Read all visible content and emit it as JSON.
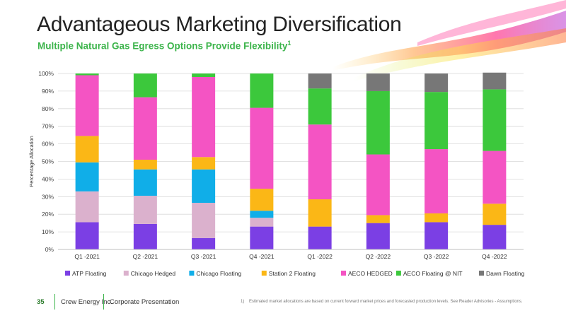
{
  "slide": {
    "title": "Advantageous Marketing Diversification",
    "subtitle": "Multiple Natural Gas Egress Options Provide Flexibility",
    "subtitle_footnote_mark": "1"
  },
  "footer": {
    "page_number": "35",
    "company": "Crew Energy Inc.",
    "presentation": "Corporate Presentation",
    "footnote_number": "1)",
    "footnote_text": "Estimated market allocations are based on current forward market prices and forecasted production levels. See Reader Advisories - Assumptions."
  },
  "chart_data": {
    "type": "bar",
    "stacked": true,
    "ylabel": "Percentage Allocation",
    "ylim": [
      0,
      100
    ],
    "yticks": [
      0,
      10,
      20,
      30,
      40,
      50,
      60,
      70,
      80,
      90,
      100
    ],
    "ytick_suffix": "%",
    "grid": true,
    "legend_position": "bottom",
    "categories": [
      "Q1 -2021",
      "Q2 -2021",
      "Q3 -2021",
      "Q4 -2021",
      "Q1 -2022",
      "Q2 -2022",
      "Q3 -2022",
      "Q4 -2022"
    ],
    "series": [
      {
        "name": "ATP Floating",
        "color": "#7b3fe4",
        "values": [
          15.5,
          14.5,
          6.5,
          13,
          13,
          15,
          15.5,
          14
        ]
      },
      {
        "name": "Chicago Hedged",
        "color": "#dbb1cd",
        "values": [
          17.5,
          16,
          20,
          5,
          0,
          0,
          0,
          0
        ]
      },
      {
        "name": "Chicago Floating",
        "color": "#10aee8",
        "values": [
          16.5,
          15,
          19,
          4,
          0,
          0,
          0,
          0
        ]
      },
      {
        "name": "Station 2 Floating",
        "color": "#fbb716",
        "values": [
          15,
          5.5,
          7,
          12.5,
          15.5,
          4.5,
          5,
          12
        ]
      },
      {
        "name": "AECO HEDGED",
        "color": "#f454c3",
        "values": [
          34.5,
          35.5,
          45.5,
          46,
          42.5,
          34.5,
          36.5,
          30
        ]
      },
      {
        "name": "AECO Floating @ NIT",
        "color": "#3cc83c",
        "values": [
          1,
          13.5,
          2,
          19.5,
          20.5,
          36,
          32.5,
          35
        ]
      },
      {
        "name": "Dawn Floating",
        "color": "#777777",
        "values": [
          0,
          0,
          0,
          0,
          8.5,
          10,
          10.5,
          9.5
        ]
      }
    ]
  }
}
